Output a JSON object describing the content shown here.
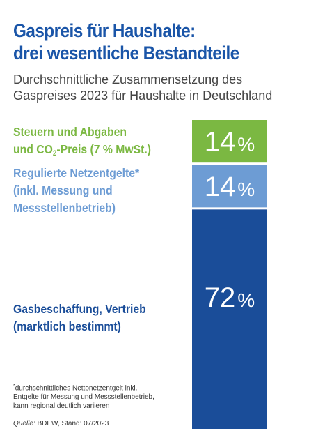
{
  "chart_data": {
    "type": "bar",
    "title": [
      "Gaspreis für Haushalte:",
      "drei wesentliche Bestandteile"
    ],
    "subtitle": [
      "Durchschnittliche Zusammensetzung des",
      "Gaspreises 2023 für Haushalte in Deutschland"
    ],
    "segments": [
      {
        "label_lines": [
          "Steuern und Abgaben",
          "und CO|2|-Preis (7 % MwSt.)"
        ],
        "value": 14,
        "value_text": "14",
        "color": "#7bb842"
      },
      {
        "label_lines": [
          "Regulierte Netzentgelte*",
          "(inkl. Messung und",
          "Messstellenbetrieb)"
        ],
        "value": 14,
        "value_text": "14",
        "color": "#6d9cd4"
      },
      {
        "label_lines": [
          "Gasbeschaffung, Vertrieb",
          "(marktlich bestimmt)"
        ],
        "value": 72,
        "value_text": "72",
        "color": "#1a4d99"
      }
    ],
    "unit": "%",
    "footnote_marker": "*",
    "footnote": [
      "durchschnittliches Nettonetzentgelt inkl.",
      "Entgelte für Messung und Messstellenbetrieb,",
      "kann regional deutlich variieren"
    ],
    "source_label": "Quelle:",
    "source_text": " BDEW, Stand: 07/2023"
  }
}
